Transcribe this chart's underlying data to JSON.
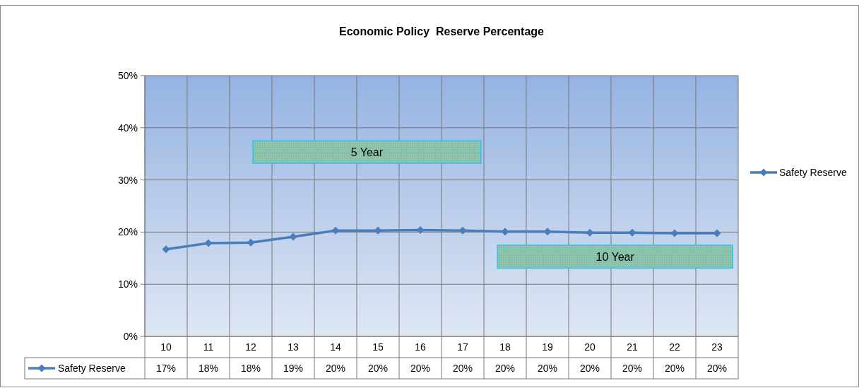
{
  "chart_data": {
    "type": "line",
    "title": "Economic Policy  Reserve Percentage",
    "categories": [
      "10",
      "11",
      "12",
      "13",
      "14",
      "15",
      "16",
      "17",
      "18",
      "19",
      "20",
      "21",
      "22",
      "23"
    ],
    "series": [
      {
        "name": "Safety Reserve",
        "color": "#4a7ebb",
        "values": [
          16.7,
          17.9,
          18.0,
          19.1,
          20.3,
          20.3,
          20.4,
          20.3,
          20.1,
          20.1,
          19.9,
          19.9,
          19.8,
          19.8
        ],
        "value_labels": [
          "17%",
          "18%",
          "18%",
          "19%",
          "20%",
          "20%",
          "20%",
          "20%",
          "20%",
          "20%",
          "20%",
          "20%",
          "20%",
          "20%"
        ]
      }
    ],
    "ylim": [
      0,
      50
    ],
    "yticks": [
      {
        "value": 0,
        "label": "0%"
      },
      {
        "value": 10,
        "label": "10%"
      },
      {
        "value": 20,
        "label": "20%"
      },
      {
        "value": 30,
        "label": "30%"
      },
      {
        "value": 40,
        "label": "40%"
      },
      {
        "value": 50,
        "label": "50%"
      }
    ],
    "grid": true,
    "legend": "right",
    "marker": "diamond",
    "line_style": "solid",
    "annotations": [
      "5 Year",
      "10 Year"
    ]
  }
}
